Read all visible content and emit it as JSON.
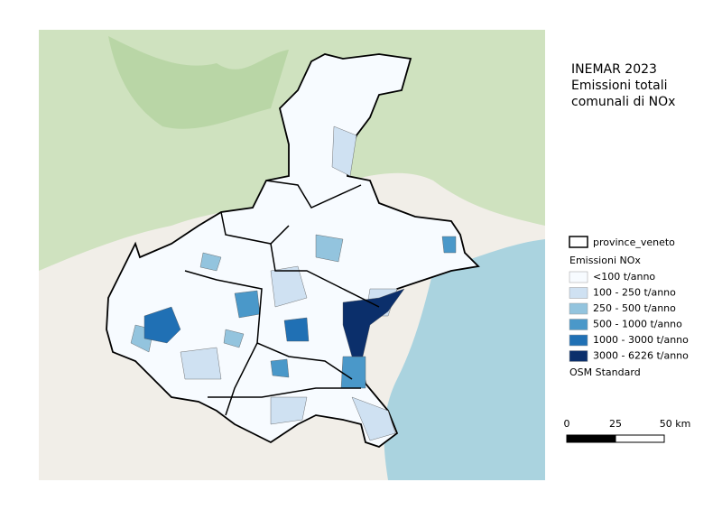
{
  "title": [
    "INEMAR 2023",
    "Emissioni totali",
    "comunali di NOx"
  ],
  "legend": {
    "boundary": "province_veneto",
    "group": "Emissioni NOx",
    "classes": [
      {
        "label": "<100 t/anno",
        "color": "#f7fbff"
      },
      {
        "label": "100 - 250 t/anno",
        "color": "#cfe1f2"
      },
      {
        "label": "250 - 500 t/anno",
        "color": "#93c4de"
      },
      {
        "label": "500 - 1000 t/anno",
        "color": "#4a98c9"
      },
      {
        "label": "1000 - 3000 t/anno",
        "color": "#2070b4"
      },
      {
        "label": "3000 - 6226 t/anno",
        "color": "#0b2f6b"
      }
    ],
    "basemap": "OSM Standard"
  },
  "scale_bar": {
    "labels": [
      "0",
      "25",
      "50 km"
    ]
  }
}
